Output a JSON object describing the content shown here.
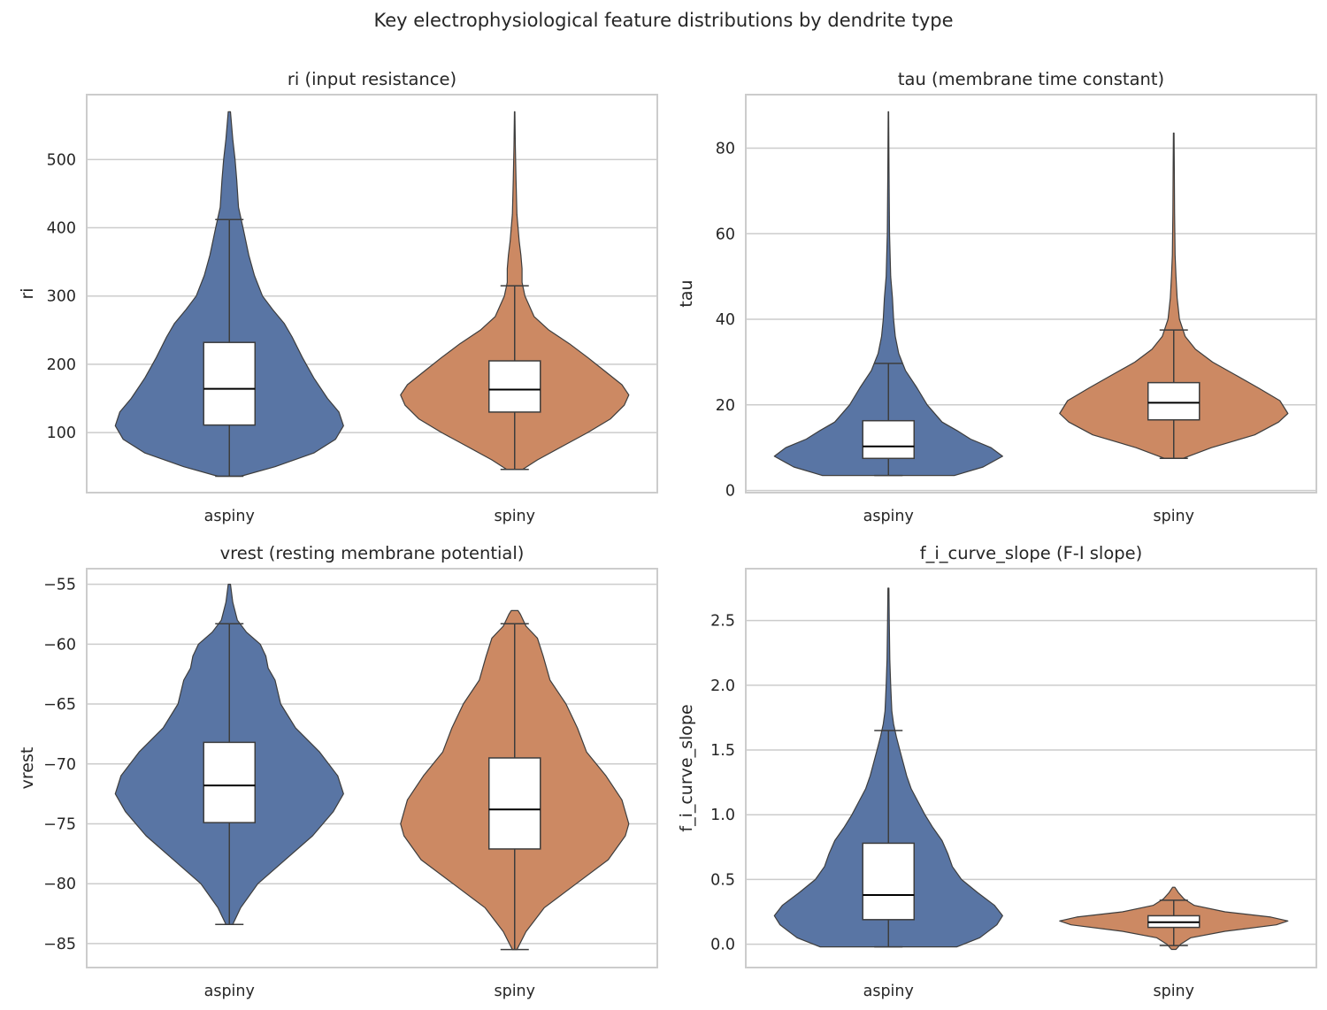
{
  "figure": {
    "title": "Key electrophysiological feature distributions by dendrite type"
  },
  "colors": {
    "aspiny": "#5975a4",
    "spiny": "#cc8963",
    "grid": "#cccccc",
    "frame": "#cccccc",
    "outline": "#3d3d3d"
  },
  "chart_data": [
    {
      "type": "violin",
      "title": "ri  (input resistance)",
      "xlabel": "",
      "ylabel": "ri",
      "categories": [
        "aspiny",
        "spiny"
      ],
      "ylim": [
        12,
        595
      ],
      "yticks": [
        100,
        200,
        300,
        400,
        500
      ],
      "ytick_labels": [
        "100",
        "200",
        "300",
        "400",
        "500"
      ],
      "grid": true,
      "series": [
        {
          "category": "aspiny",
          "min": 36,
          "max": 570,
          "q1": 111,
          "median": 164,
          "q3": 232,
          "whisker_low": 36,
          "whisker_high": 412,
          "density": [
            [
              36,
              0.1
            ],
            [
              50,
              0.4
            ],
            [
              70,
              0.74
            ],
            [
              90,
              0.93
            ],
            [
              110,
              1.0
            ],
            [
              130,
              0.96
            ],
            [
              150,
              0.86
            ],
            [
              180,
              0.74
            ],
            [
              210,
              0.64
            ],
            [
              240,
              0.55
            ],
            [
              260,
              0.48
            ],
            [
              280,
              0.38
            ],
            [
              300,
              0.29
            ],
            [
              330,
              0.22
            ],
            [
              360,
              0.17
            ],
            [
              400,
              0.12
            ],
            [
              430,
              0.08
            ],
            [
              470,
              0.065
            ],
            [
              500,
              0.05
            ],
            [
              530,
              0.03
            ],
            [
              570,
              0.01
            ]
          ]
        },
        {
          "category": "spiny",
          "min": 46,
          "max": 570,
          "q1": 130,
          "median": 163,
          "q3": 205,
          "whisker_low": 46,
          "whisker_high": 315,
          "density": [
            [
              46,
              0.07
            ],
            [
              60,
              0.2
            ],
            [
              80,
              0.42
            ],
            [
              100,
              0.64
            ],
            [
              120,
              0.84
            ],
            [
              140,
              0.96
            ],
            [
              155,
              1.0
            ],
            [
              170,
              0.94
            ],
            [
              190,
              0.79
            ],
            [
              210,
              0.64
            ],
            [
              230,
              0.48
            ],
            [
              250,
              0.3
            ],
            [
              270,
              0.17
            ],
            [
              300,
              0.09
            ],
            [
              320,
              0.065
            ],
            [
              340,
              0.065
            ],
            [
              360,
              0.055
            ],
            [
              380,
              0.04
            ],
            [
              420,
              0.02
            ],
            [
              470,
              0.012
            ],
            [
              520,
              0.006
            ],
            [
              570,
              0.002
            ]
          ]
        }
      ]
    },
    {
      "type": "violin",
      "title": "tau  (membrane time constant)",
      "xlabel": "",
      "ylabel": "tau",
      "categories": [
        "aspiny",
        "spiny"
      ],
      "ylim": [
        -0.5,
        92.5
      ],
      "yticks": [
        0,
        20,
        40,
        60,
        80
      ],
      "ytick_labels": [
        "0",
        "20",
        "40",
        "60",
        "80"
      ],
      "grid": true,
      "series": [
        {
          "category": "aspiny",
          "min": 3.5,
          "max": 88.5,
          "q1": 7.5,
          "median": 10.3,
          "q3": 16.3,
          "whisker_low": 3.5,
          "whisker_high": 29.7,
          "density": [
            [
              3.5,
              0.58
            ],
            [
              5.5,
              0.83
            ],
            [
              8,
              1.0
            ],
            [
              10,
              0.9
            ],
            [
              12,
              0.72
            ],
            [
              14,
              0.6
            ],
            [
              16,
              0.47
            ],
            [
              20,
              0.34
            ],
            [
              24,
              0.25
            ],
            [
              28,
              0.15
            ],
            [
              32,
              0.09
            ],
            [
              36,
              0.06
            ],
            [
              40,
              0.045
            ],
            [
              45,
              0.035
            ],
            [
              50,
              0.02
            ],
            [
              60,
              0.01
            ],
            [
              75,
              0.005
            ],
            [
              88.5,
              0.002
            ]
          ]
        },
        {
          "category": "spiny",
          "min": 7.5,
          "max": 83.5,
          "q1": 16.5,
          "median": 20.5,
          "q3": 25.2,
          "whisker_low": 7.5,
          "whisker_high": 37.5,
          "density": [
            [
              7.5,
              0.08
            ],
            [
              10,
              0.33
            ],
            [
              13,
              0.71
            ],
            [
              16,
              0.92
            ],
            [
              18,
              1.0
            ],
            [
              21,
              0.93
            ],
            [
              24,
              0.74
            ],
            [
              27,
              0.54
            ],
            [
              30,
              0.34
            ],
            [
              33,
              0.19
            ],
            [
              36,
              0.1
            ],
            [
              40,
              0.05
            ],
            [
              45,
              0.03
            ],
            [
              50,
              0.02
            ],
            [
              55,
              0.012
            ],
            [
              65,
              0.007
            ],
            [
              75,
              0.005
            ],
            [
              83.5,
              0.003
            ]
          ]
        }
      ]
    },
    {
      "type": "violin",
      "title": "vrest  (resting membrane potential)",
      "xlabel": "",
      "ylabel": "vrest",
      "categories": [
        "aspiny",
        "spiny"
      ],
      "ylim": [
        -87,
        -53.7
      ],
      "yticks": [
        -85,
        -80,
        -75,
        -70,
        -65,
        -60,
        -55
      ],
      "ytick_labels": [
        "−85",
        "−80",
        "−75",
        "−70",
        "−65",
        "−60",
        "−55"
      ],
      "grid": true,
      "series": [
        {
          "category": "aspiny",
          "min": -83.4,
          "max": -55,
          "q1": -74.9,
          "median": -71.8,
          "q3": -68.2,
          "whisker_low": -83.4,
          "whisker_high": -58.3,
          "density": [
            [
              -83.4,
              0.03
            ],
            [
              -82,
              0.1
            ],
            [
              -80,
              0.25
            ],
            [
              -78,
              0.49
            ],
            [
              -76,
              0.73
            ],
            [
              -74,
              0.91
            ],
            [
              -72.5,
              1.0
            ],
            [
              -71,
              0.95
            ],
            [
              -69,
              0.79
            ],
            [
              -67,
              0.58
            ],
            [
              -65,
              0.45
            ],
            [
              -63,
              0.4
            ],
            [
              -62,
              0.34
            ],
            [
              -61,
              0.32
            ],
            [
              -60,
              0.27
            ],
            [
              -59,
              0.15
            ],
            [
              -58,
              0.07
            ],
            [
              -56.5,
              0.03
            ],
            [
              -55,
              0.01
            ]
          ]
        },
        {
          "category": "spiny",
          "min": -85.5,
          "max": -57.2,
          "q1": -77.1,
          "median": -73.8,
          "q3": -69.5,
          "whisker_low": -85.5,
          "whisker_high": -58.3,
          "density": [
            [
              -85.5,
              0.02
            ],
            [
              -84,
              0.1
            ],
            [
              -82,
              0.26
            ],
            [
              -80,
              0.54
            ],
            [
              -78,
              0.82
            ],
            [
              -76,
              0.97
            ],
            [
              -75,
              1.0
            ],
            [
              -73,
              0.94
            ],
            [
              -71,
              0.8
            ],
            [
              -69,
              0.63
            ],
            [
              -67,
              0.55
            ],
            [
              -65,
              0.45
            ],
            [
              -63,
              0.31
            ],
            [
              -61,
              0.25
            ],
            [
              -59.5,
              0.2
            ],
            [
              -58.5,
              0.1
            ],
            [
              -57.5,
              0.05
            ],
            [
              -57.2,
              0.03
            ]
          ]
        }
      ]
    },
    {
      "type": "violin",
      "title": "f_i_curve_slope  (F-I slope)",
      "xlabel": "",
      "ylabel": "f_i_curve_slope",
      "categories": [
        "aspiny",
        "spiny"
      ],
      "ylim": [
        -0.18,
        2.9
      ],
      "yticks": [
        0.0,
        0.5,
        1.0,
        1.5,
        2.0,
        2.5
      ],
      "ytick_labels": [
        "0.0",
        "0.5",
        "1.0",
        "1.5",
        "2.0",
        "2.5"
      ],
      "grid": true,
      "series": [
        {
          "category": "aspiny",
          "min": -0.02,
          "max": 2.75,
          "q1": 0.19,
          "median": 0.38,
          "q3": 0.78,
          "whisker_low": -0.02,
          "whisker_high": 1.65,
          "density": [
            [
              -0.02,
              0.6
            ],
            [
              0.05,
              0.8
            ],
            [
              0.15,
              0.95
            ],
            [
              0.22,
              1.0
            ],
            [
              0.3,
              0.93
            ],
            [
              0.4,
              0.78
            ],
            [
              0.5,
              0.64
            ],
            [
              0.6,
              0.56
            ],
            [
              0.7,
              0.52
            ],
            [
              0.8,
              0.47
            ],
            [
              0.9,
              0.39
            ],
            [
              1.0,
              0.32
            ],
            [
              1.1,
              0.26
            ],
            [
              1.2,
              0.2
            ],
            [
              1.3,
              0.16
            ],
            [
              1.4,
              0.13
            ],
            [
              1.5,
              0.1
            ],
            [
              1.6,
              0.07
            ],
            [
              1.7,
              0.045
            ],
            [
              1.8,
              0.03
            ],
            [
              2.0,
              0.02
            ],
            [
              2.2,
              0.012
            ],
            [
              2.5,
              0.007
            ],
            [
              2.75,
              0.004
            ]
          ]
        },
        {
          "category": "spiny",
          "min": -0.04,
          "max": 0.44,
          "q1": 0.13,
          "median": 0.17,
          "q3": 0.22,
          "whisker_low": -0.01,
          "whisker_high": 0.34,
          "density": [
            [
              -0.04,
              0.02
            ],
            [
              0.0,
              0.06
            ],
            [
              0.05,
              0.15
            ],
            [
              0.1,
              0.45
            ],
            [
              0.15,
              0.9
            ],
            [
              0.18,
              1.0
            ],
            [
              0.21,
              0.85
            ],
            [
              0.25,
              0.45
            ],
            [
              0.3,
              0.18
            ],
            [
              0.35,
              0.09
            ],
            [
              0.4,
              0.04
            ],
            [
              0.44,
              0.01
            ]
          ]
        }
      ]
    }
  ]
}
